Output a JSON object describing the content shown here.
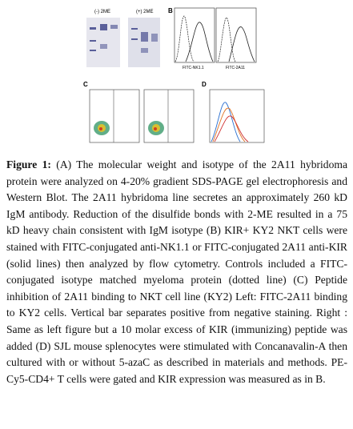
{
  "figure": {
    "panels": {
      "a": {
        "lanes_minus": "(-) 2ME",
        "lanes_plus": "(+) 2ME"
      },
      "b": {
        "label": "B",
        "x_axis_1": "FITC-NK1.1",
        "x_axis_2": "FITC-2A11"
      },
      "c": {
        "label": "C"
      },
      "d": {
        "label": "D"
      }
    }
  },
  "caption": {
    "label": "Figure 1:",
    "text": "(A) The molecular weight and isotype of the 2A11 hybridoma protein were analyzed on 4-20% gradient SDS-PAGE gel electrophoresis and Western Blot. The 2A11 hybridoma line secretes an approximately 260 kD IgM antibody. Reduction of the disulfide bonds with 2-ME resulted in a 75 kD heavy chain consistent with IgM isotype (B) KIR+ KY2 NKT cells were stained with FITC-conjugated anti-NK1.1 or FITC-conjugated 2A11 anti-KIR (solid lines) then analyzed by flow cytometry. Controls included a FITC-conjugated isotype matched myeloma protein (dotted line) (C) Peptide inhibition of 2A11 binding to NKT cell line (KY2) Left: FITC-2A11 binding to KY2 cells. Vertical bar separates positive from negative staining. Right : Same as left figure but a 10 molar excess of KIR (immunizing) peptide was added (D) SJL mouse splenocytes were stimulated with Concanavalin-A then cultured with or without 5-azaC as described in materials and methods. PE-Cy5-CD4+ T cells were gated and KIR expression was measured as in B."
  }
}
